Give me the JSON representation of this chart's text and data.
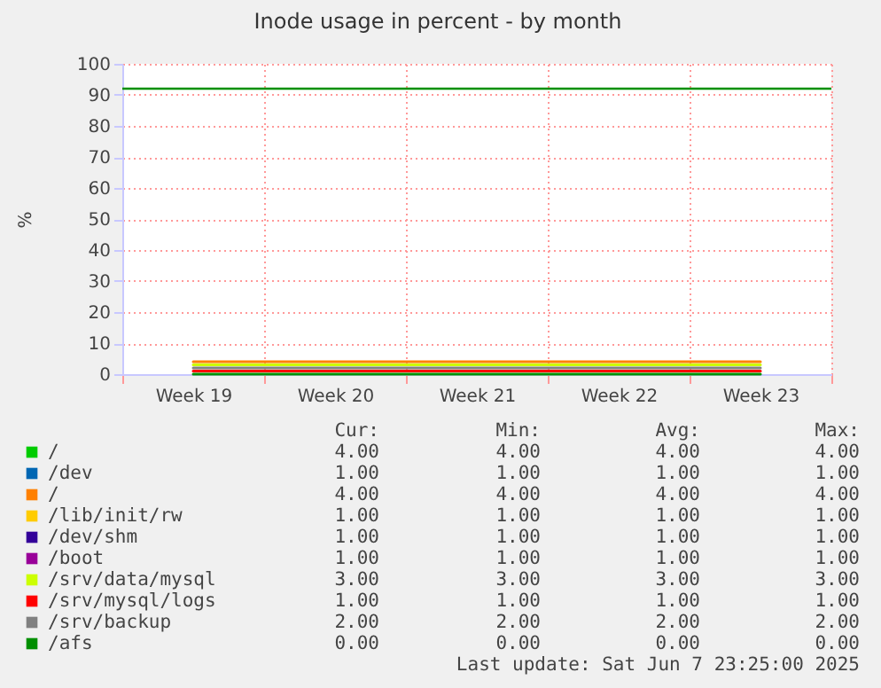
{
  "chart_data": {
    "type": "line",
    "title": "Inode usage in percent - by month",
    "ylabel": "%",
    "categories": [
      "Week 19",
      "Week 20",
      "Week 21",
      "Week 22",
      "Week 23"
    ],
    "ylim": [
      0,
      100
    ],
    "yticks": [
      0,
      10,
      20,
      30,
      40,
      50,
      60,
      70,
      80,
      90,
      100
    ],
    "grid": true,
    "legend": "bottom",
    "series": [
      {
        "name": "/",
        "color": "#00cc00",
        "values": [
          null,
          null,
          null,
          null,
          null
        ]
      },
      {
        "name": "/dev",
        "color": "#0066b3",
        "values": [
          null,
          null,
          null,
          null,
          null
        ]
      },
      {
        "name": "/",
        "color": "#ff8000",
        "values": [
          4,
          4,
          4,
          4,
          4
        ]
      },
      {
        "name": "/lib/init/rw",
        "color": "#ffcc00",
        "values": [
          null,
          null,
          null,
          null,
          null
        ]
      },
      {
        "name": "/dev/shm",
        "color": "#330099",
        "values": [
          null,
          null,
          null,
          null,
          null
        ]
      },
      {
        "name": "/boot",
        "color": "#990099",
        "values": [
          null,
          null,
          null,
          null,
          null
        ]
      },
      {
        "name": "/srv/data/mysql",
        "color": "#ccff00",
        "values": [
          3,
          3,
          3,
          3,
          3
        ]
      },
      {
        "name": "/srv/mysql/logs",
        "color": "#ff0000",
        "values": [
          1,
          1,
          1,
          1,
          1
        ]
      },
      {
        "name": "/srv/backup",
        "color": "#808080",
        "values": [
          2,
          2,
          2,
          2,
          2
        ]
      },
      {
        "name": "/afs",
        "color": "#008f00",
        "values": [
          0,
          0,
          0,
          0,
          0
        ]
      }
    ],
    "ref_lines": [
      {
        "axis": "y",
        "value": 92,
        "color": "#008f00"
      }
    ],
    "annotations": [
      "Cur:",
      "Min:",
      "Avg:",
      "Max:",
      "4.00",
      "4.00",
      "4.00",
      "4.00",
      "1.00",
      "1.00",
      "1.00",
      "1.00",
      "4.00",
      "4.00",
      "4.00",
      "4.00",
      "1.00",
      "1.00",
      "1.00",
      "1.00",
      "1.00",
      "1.00",
      "1.00",
      "1.00",
      "1.00",
      "1.00",
      "1.00",
      "1.00",
      "3.00",
      "3.00",
      "3.00",
      "3.00",
      "1.00",
      "1.00",
      "1.00",
      "1.00",
      "2.00",
      "2.00",
      "2.00",
      "2.00",
      "0.00",
      "0.00",
      "0.00",
      "0.00",
      "Last update:  Sat Jun  7 23:25:00 2025"
    ]
  }
}
